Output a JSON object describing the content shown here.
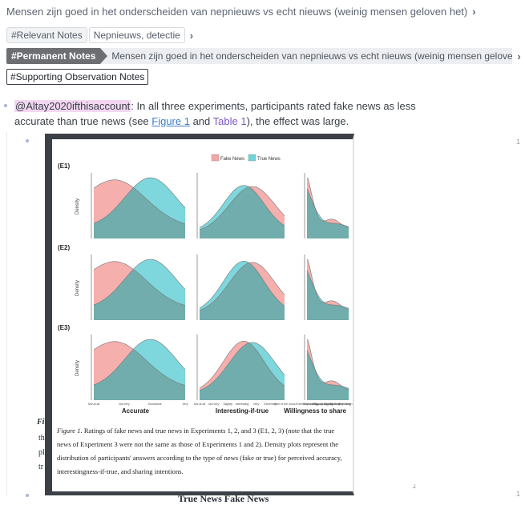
{
  "title": "Mensen zijn goed in het onderscheiden van nepnieuws vs echt nieuws (weinig mensen geloven het)",
  "relevant_notes": {
    "tag": "#Relevant Notes",
    "value": "Nepnieuws, detectie"
  },
  "permanent_notes": {
    "tag": "#Permanent Notes",
    "value": "Mensen zijn goed in het onderscheiden van nepnieuws vs echt nieuws (weinig mensen geloven het)"
  },
  "supporting": {
    "tag": "#Supporting Observation Notes"
  },
  "paragraph": {
    "mention": "@Altay2020ifthisaccount",
    "text1": ": In all three experiments, participants rated fake news as less accurate than true news (see ",
    "figure_link": "Figure 1",
    "and": " and ",
    "table_link": "Table 1",
    "text2": "), the effect was large."
  },
  "line_numbers": {
    "a": "1",
    "b": "1"
  },
  "background_text": {
    "partial": "True News     Fake News",
    "letters": [
      "Fi",
      "th",
      "pl",
      "tr"
    ]
  },
  "figure": {
    "legend": {
      "fake": "Fake News",
      "true": "True News"
    },
    "experiments": [
      "(E1)",
      "(E2)",
      "(E3)"
    ],
    "ylabel": "Density",
    "panels": [
      "Accurate",
      "Interesting-if-true",
      "Willingness to share"
    ],
    "xticks": {
      "accurate": [
        "Not at all",
        "Not very",
        "Somewhat",
        "Very"
      ],
      "interesting": [
        "Not at all",
        "Not very",
        "Slightly",
        "Interesting",
        "Very",
        "Extremely",
        "One of the most"
      ],
      "share": [
        "Extremely unlikely",
        "Moderately unlikely",
        "Slightly unlikely",
        "Slightly likely",
        "Moderately likely",
        "Extremely likely"
      ]
    },
    "caption_label": "Figure 1.",
    "caption": " Ratings of fake news and true news in Experiments 1, 2, and 3 (E1, 2, 3) (note that the true news of Experiment 3 were not the same as those of Experiments 1 and 2). Density plots represent the distribution of participants' answers according to the type of news (fake or true) for perceived accuracy, interestingness-if-true, and sharing intentions.",
    "colors": {
      "fake": "#f4a6a4",
      "true": "#6fd3d8",
      "overlap": "#6fa9a7"
    }
  }
}
